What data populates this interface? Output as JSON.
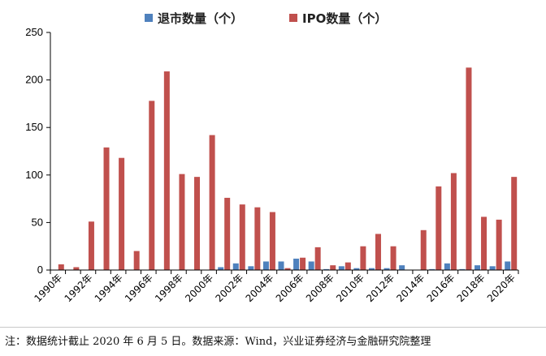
{
  "chart_data": {
    "type": "bar",
    "categories": [
      "1990年",
      "1991年",
      "1992年",
      "1993年",
      "1994年",
      "1995年",
      "1996年",
      "1997年",
      "1998年",
      "1999年",
      "2000年",
      "2001年",
      "2002年",
      "2003年",
      "2004年",
      "2005年",
      "2006年",
      "2007年",
      "2008年",
      "2009年",
      "2010年",
      "2011年",
      "2012年",
      "2013年",
      "2014年",
      "2015年",
      "2016年",
      "2017年",
      "2018年",
      "2019年",
      "2020年"
    ],
    "x_tick_labels": [
      "1990年",
      "1992年",
      "1994年",
      "1996年",
      "1998年",
      "2000年",
      "2002年",
      "2004年",
      "2006年",
      "2008年",
      "2010年",
      "2012年",
      "2014年",
      "2016年",
      "2018年",
      "2020年"
    ],
    "series": [
      {
        "name": "退市数量（个）",
        "color": "#4f81bd",
        "values": [
          0,
          0,
          0,
          0,
          0,
          0,
          0,
          0,
          0,
          0,
          0,
          3,
          7,
          4,
          9,
          9,
          12,
          9,
          1,
          4,
          2,
          2,
          2,
          5,
          0,
          1,
          7,
          1,
          5,
          4,
          9
        ]
      },
      {
        "name": "IPO数量（个）",
        "color": "#c0504d",
        "values": [
          6,
          3,
          51,
          129,
          118,
          20,
          178,
          209,
          101,
          98,
          142,
          76,
          69,
          66,
          61,
          2,
          13,
          24,
          5,
          8,
          25,
          38,
          25,
          0,
          42,
          88,
          102,
          213,
          56,
          53,
          98
        ]
      }
    ],
    "ylim": [
      0,
      250
    ],
    "y_ticks": [
      "0",
      "50",
      "100",
      "150",
      "200",
      "250"
    ],
    "xlabel": "",
    "ylabel": "",
    "legend_position": "top-center",
    "grid": false
  },
  "note": "注：数据统计截止 2020 年 6 月 5 日。数据来源：Wind，兴业证券经济与金融研究院整理"
}
